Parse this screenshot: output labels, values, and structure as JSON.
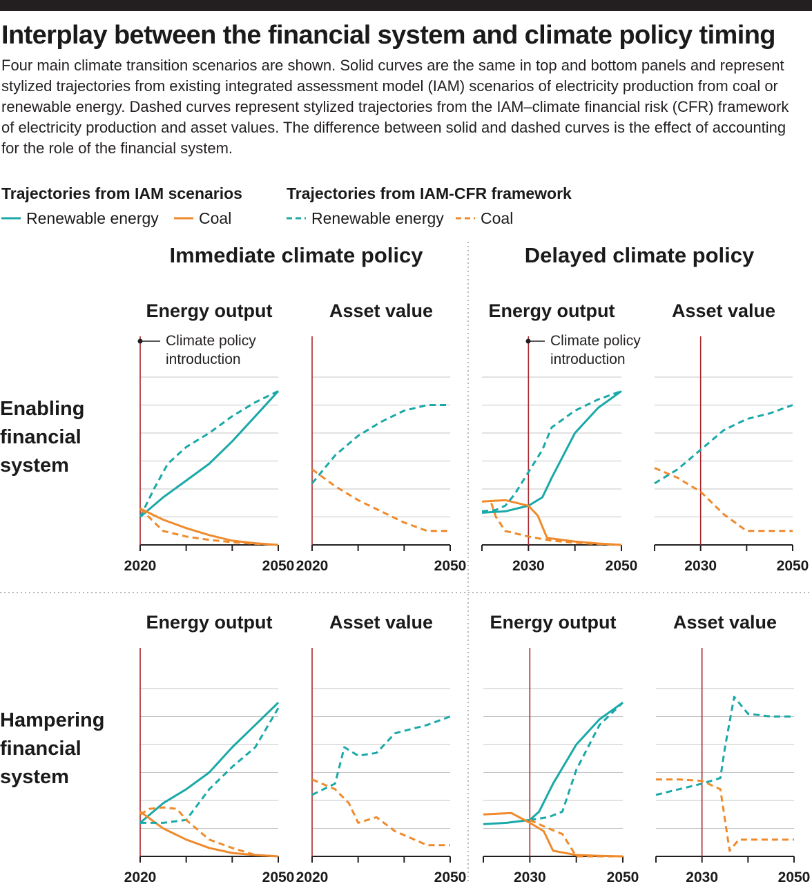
{
  "title": "Interplay between the financial system and climate policy timing",
  "description": "Four main climate transition scenarios are shown. Solid curves are the same in top and bottom panels and represent stylized trajectories from existing integrated assessment model (IAM) scenarios of electricity production from coal or renewable energy. Dashed curves represent stylized trajectories from the IAM–climate financial risk (CFR) framework of electricity production and asset values. The difference between solid and dashed curves is the effect of accounting for the role of the financial system.",
  "legend": {
    "iam_heading": "Trajectories from IAM scenarios",
    "cfr_heading": "Trajectories from IAM-CFR framework",
    "items": [
      {
        "label": "Renewable energy",
        "color": "#1aa8a8",
        "style": "solid"
      },
      {
        "label": "Coal",
        "color": "#ef8a2c",
        "style": "solid"
      },
      {
        "label": "Renewable energy",
        "color": "#1aa8a8",
        "style": "dashed"
      },
      {
        "label": "Coal",
        "color": "#ef8a2c",
        "style": "dashed"
      }
    ]
  },
  "columns": {
    "immediate": "Immediate climate policy",
    "delayed": "Delayed climate policy"
  },
  "rows": {
    "enabling": [
      "Enabling",
      "financial",
      "system"
    ],
    "hampering": [
      "Hampering",
      "financial",
      "system"
    ]
  },
  "panel_titles": {
    "energy": "Energy output",
    "asset": "Asset value"
  },
  "annotation": [
    "Climate policy",
    "introduction"
  ],
  "colors": {
    "renewable": "#1aa8a8",
    "coal": "#ef8a2c",
    "policy_line": "#a8262a",
    "grid": "#c4c4c4",
    "axis": "#231f20",
    "separator": "#8a8a8a"
  },
  "chart_data": [
    {
      "type": "line",
      "id": "enabling-immediate-energy",
      "xlim": [
        2020,
        2050
      ],
      "ylim": [
        0,
        6
      ],
      "x_ticks_labeled": [
        "2020",
        "2050"
      ],
      "policy_year": 2020,
      "grid": true,
      "series": [
        {
          "name": "Renewable energy",
          "style": "solid",
          "x": [
            2020,
            2025,
            2030,
            2035,
            2040,
            2045,
            2050
          ],
          "y": [
            1.0,
            1.7,
            2.3,
            2.9,
            3.7,
            4.6,
            5.5
          ]
        },
        {
          "name": "Coal",
          "style": "solid",
          "x": [
            2020,
            2025,
            2030,
            2035,
            2040,
            2045,
            2050
          ],
          "y": [
            1.3,
            0.9,
            0.6,
            0.35,
            0.15,
            0.06,
            0.0
          ]
        },
        {
          "name": "Renewable energy",
          "style": "dashed",
          "x": [
            2020,
            2023,
            2026,
            2030,
            2035,
            2040,
            2045,
            2050
          ],
          "y": [
            1.0,
            2.0,
            2.9,
            3.5,
            4.0,
            4.6,
            5.1,
            5.5
          ]
        },
        {
          "name": "Coal",
          "style": "dashed",
          "x": [
            2020,
            2025,
            2030,
            2035,
            2040,
            2045,
            2050
          ],
          "y": [
            1.3,
            0.5,
            0.3,
            0.18,
            0.1,
            0.04,
            0.0
          ]
        }
      ]
    },
    {
      "type": "line",
      "id": "enabling-immediate-asset",
      "xlim": [
        2020,
        2050
      ],
      "ylim": [
        0,
        6
      ],
      "x_ticks_labeled": [
        "2020",
        "2050"
      ],
      "policy_year": 2020,
      "grid": true,
      "series": [
        {
          "name": "Renewable energy",
          "style": "dashed",
          "x": [
            2020,
            2025,
            2030,
            2035,
            2040,
            2045,
            2050
          ],
          "y": [
            2.2,
            3.2,
            3.9,
            4.4,
            4.8,
            5.0,
            5.0
          ]
        },
        {
          "name": "Coal",
          "style": "dashed",
          "x": [
            2020,
            2025,
            2030,
            2035,
            2040,
            2045,
            2050
          ],
          "y": [
            2.7,
            2.1,
            1.6,
            1.2,
            0.8,
            0.5,
            0.5
          ]
        }
      ]
    },
    {
      "type": "line",
      "id": "enabling-delayed-energy",
      "xlim": [
        2020,
        2050
      ],
      "ylim": [
        0,
        6
      ],
      "x_ticks_labeled": [
        "2030",
        "2050"
      ],
      "policy_year": 2030,
      "grid": true,
      "series": [
        {
          "name": "Renewable energy",
          "style": "solid",
          "x": [
            2020,
            2025,
            2030,
            2033,
            2035,
            2040,
            2045,
            2050
          ],
          "y": [
            1.15,
            1.2,
            1.4,
            1.7,
            2.4,
            4.0,
            4.9,
            5.5
          ]
        },
        {
          "name": "Coal",
          "style": "solid",
          "x": [
            2020,
            2025,
            2030,
            2032,
            2034,
            2040,
            2045,
            2050
          ],
          "y": [
            1.55,
            1.6,
            1.4,
            1.05,
            0.25,
            0.12,
            0.05,
            0.0
          ]
        },
        {
          "name": "Renewable energy",
          "style": "dashed",
          "x": [
            2020,
            2023,
            2025,
            2027,
            2030,
            2033,
            2035,
            2040,
            2045,
            2050
          ],
          "y": [
            1.2,
            1.25,
            1.4,
            1.8,
            2.6,
            3.4,
            4.2,
            4.8,
            5.2,
            5.5
          ]
        },
        {
          "name": "Coal",
          "style": "dashed",
          "x": [
            2022,
            2023,
            2025,
            2030,
            2035,
            2040,
            2045,
            2050
          ],
          "y": [
            1.5,
            1.0,
            0.5,
            0.3,
            0.15,
            0.08,
            0.03,
            0.0
          ]
        }
      ]
    },
    {
      "type": "line",
      "id": "enabling-delayed-asset",
      "xlim": [
        2020,
        2050
      ],
      "ylim": [
        0,
        6
      ],
      "x_ticks_labeled": [
        "2030",
        "2050"
      ],
      "policy_year": 2030,
      "grid": true,
      "series": [
        {
          "name": "Renewable energy",
          "style": "dashed",
          "x": [
            2020,
            2025,
            2030,
            2035,
            2040,
            2045,
            2050
          ],
          "y": [
            2.2,
            2.7,
            3.4,
            4.1,
            4.5,
            4.7,
            5.0
          ]
        },
        {
          "name": "Coal",
          "style": "dashed",
          "x": [
            2020,
            2025,
            2030,
            2035,
            2040,
            2045,
            2050
          ],
          "y": [
            2.75,
            2.4,
            1.9,
            1.1,
            0.5,
            0.5,
            0.5
          ]
        }
      ]
    },
    {
      "type": "line",
      "id": "hampering-immediate-energy",
      "xlim": [
        2020,
        2050
      ],
      "ylim": [
        0,
        6
      ],
      "x_ticks_labeled": [
        "2020",
        "2050"
      ],
      "policy_year": 2020,
      "grid": true,
      "series": [
        {
          "name": "Renewable energy",
          "style": "solid",
          "x": [
            2020,
            2025,
            2030,
            2035,
            2040,
            2045,
            2050
          ],
          "y": [
            1.2,
            1.9,
            2.4,
            3.0,
            3.9,
            4.7,
            5.5
          ]
        },
        {
          "name": "Coal",
          "style": "solid",
          "x": [
            2020,
            2025,
            2030,
            2035,
            2040,
            2045,
            2050
          ],
          "y": [
            1.6,
            1.0,
            0.6,
            0.3,
            0.12,
            0.05,
            0.0
          ]
        },
        {
          "name": "Renewable energy",
          "style": "dashed",
          "x": [
            2020,
            2025,
            2030,
            2035,
            2040,
            2045,
            2050
          ],
          "y": [
            1.2,
            1.2,
            1.3,
            2.4,
            3.2,
            3.9,
            5.3
          ]
        },
        {
          "name": "Coal",
          "style": "dashed",
          "x": [
            2020,
            2022,
            2025,
            2028,
            2030,
            2035,
            2040,
            2045,
            2050
          ],
          "y": [
            1.5,
            1.7,
            1.75,
            1.7,
            1.3,
            0.6,
            0.3,
            0.05,
            0.0
          ]
        }
      ]
    },
    {
      "type": "line",
      "id": "hampering-immediate-asset",
      "xlim": [
        2020,
        2050
      ],
      "ylim": [
        0,
        6
      ],
      "x_ticks_labeled": [
        "2020",
        "2050"
      ],
      "policy_year": 2020,
      "grid": true,
      "series": [
        {
          "name": "Renewable energy",
          "style": "dashed",
          "x": [
            2020,
            2025,
            2027,
            2030,
            2034,
            2038,
            2045,
            2050
          ],
          "y": [
            2.2,
            2.6,
            3.9,
            3.6,
            3.7,
            4.4,
            4.7,
            5.0
          ]
        },
        {
          "name": "Coal",
          "style": "dashed",
          "x": [
            2020,
            2025,
            2028,
            2030,
            2034,
            2038,
            2045,
            2050
          ],
          "y": [
            2.75,
            2.4,
            1.9,
            1.2,
            1.4,
            0.9,
            0.4,
            0.4
          ]
        }
      ]
    },
    {
      "type": "line",
      "id": "hampering-delayed-energy",
      "xlim": [
        2020,
        2050
      ],
      "ylim": [
        0,
        6
      ],
      "x_ticks_labeled": [
        "2030",
        "2050"
      ],
      "policy_year": 2030,
      "grid": true,
      "series": [
        {
          "name": "Renewable energy",
          "style": "solid",
          "x": [
            2020,
            2025,
            2030,
            2032,
            2035,
            2040,
            2045,
            2050
          ],
          "y": [
            1.15,
            1.2,
            1.3,
            1.6,
            2.6,
            4.0,
            4.9,
            5.5
          ]
        },
        {
          "name": "Coal",
          "style": "solid",
          "x": [
            2020,
            2026,
            2030,
            2033,
            2035,
            2040,
            2045,
            2050
          ],
          "y": [
            1.5,
            1.55,
            1.2,
            0.9,
            0.2,
            0.05,
            0.02,
            0.0
          ]
        },
        {
          "name": "Renewable energy",
          "style": "dashed",
          "x": [
            2030,
            2034,
            2037,
            2040,
            2045,
            2050
          ],
          "y": [
            1.3,
            1.4,
            1.6,
            3.1,
            4.7,
            5.5
          ]
        },
        {
          "name": "Coal",
          "style": "dashed",
          "x": [
            2030,
            2034,
            2037,
            2040,
            2045,
            2050
          ],
          "y": [
            1.3,
            1.0,
            0.8,
            0.0,
            0.0,
            0.0
          ]
        }
      ]
    },
    {
      "type": "line",
      "id": "hampering-delayed-asset",
      "xlim": [
        2020,
        2050
      ],
      "ylim": [
        0,
        6
      ],
      "x_ticks_labeled": [
        "2030",
        "2050"
      ],
      "policy_year": 2030,
      "grid": true,
      "series": [
        {
          "name": "Renewable energy",
          "style": "dashed",
          "x": [
            2020,
            2025,
            2030,
            2034,
            2035,
            2037,
            2040,
            2045,
            2050
          ],
          "y": [
            2.2,
            2.4,
            2.6,
            2.8,
            3.9,
            5.7,
            5.1,
            5.0,
            5.0
          ]
        },
        {
          "name": "Coal",
          "style": "dashed",
          "x": [
            2020,
            2025,
            2030,
            2034,
            2036,
            2038,
            2045,
            2050
          ],
          "y": [
            2.75,
            2.75,
            2.7,
            2.4,
            0.2,
            0.6,
            0.6,
            0.6
          ]
        }
      ]
    }
  ]
}
